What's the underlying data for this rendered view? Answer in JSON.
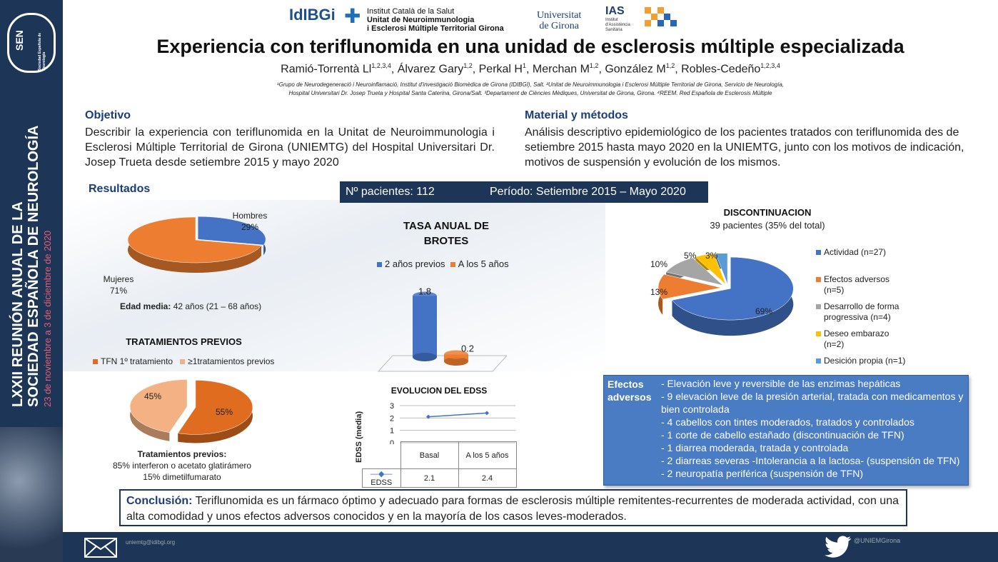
{
  "sidebar": {
    "logo_text": "SEN",
    "brand": "Sociedad Española de Neurología",
    "meeting_line1": "LXXII REUNIÓN ANUAL DE LA",
    "meeting_line2": "SOCIEDAD ESPAÑOLA DE NEUROLOGÍA",
    "dates": "23 de noviembre a 3 de diciembre de 2020"
  },
  "logos": {
    "idibgi": "IdIBGi",
    "ics_line1": "Institut Català de la Salut",
    "ics_line2": "Unitat de Neuroimmunologia",
    "ics_line3": "i Esclerosi Múltiple Territorial Girona",
    "udg_line1": "Universitat",
    "udg_line2": "de Girona",
    "ias": "IAS",
    "ias_sub": "Institut d'Assistència Sanitària"
  },
  "header": {
    "title": "Experiencia con teriflunomida en una unidad de esclerosis múltiple especializada",
    "authors": [
      {
        "name": "Ramió-Torrentà Ll",
        "sup": "1,2,3,4"
      },
      {
        "name": "Álvarez Gary",
        "sup": "1,2"
      },
      {
        "name": "Perkal H",
        "sup": "1"
      },
      {
        "name": "Merchan M",
        "sup": "1,2"
      },
      {
        "name": "González M",
        "sup": "1,2"
      },
      {
        "name": "Robles-Cedeño",
        "sup": "1,2,3,4"
      }
    ],
    "affil_line1": "¹Grupo de Neurodegeneració i Neuroinflamació, Institut d'investigació Biomèdica de Girona (IDIBGI), Salt. ²Unitat de Neuroimmunologia i Esclerosi Múltiple Territorial de Girona, Servicio de Neurología,",
    "affil_line2": "Hospital Universitari Dr. Josep Trueta y Hospital Santa Caterina, Girona/Salt. ³Departament de Ciències Mèdiques, Universitat de Girona, Girona. ⁴REEM. Red Española de Esclerosis Múltiple"
  },
  "objetivo": {
    "title": "Objetivo",
    "body": "Describir la experiencia con teriflunomida en la Unitat de Neuroimmunologia i Esclerosi Múltiple Territorial de Girona (UNIEMTG) del Hospital Universitari Dr. Josep Trueta desde setiembre 2015 y mayo 2020"
  },
  "metodos": {
    "title": "Material y métodos",
    "body": "Análisis descriptivo epidemiológico de los pacientes tratados con teriflunomida des de setiembre 2015 hasta mayo 2020 en la UNIEMTG, junto con los motivos de indicación, motivos de suspensión y evolución de los mismos."
  },
  "resultados": {
    "title": "Resultados",
    "patients": "Nº pacientes: 112",
    "period": "Período: Setiembre 2015 – Mayo 2020",
    "edad_label": "Edad media:",
    "edad_value": "42 años (21 – 68 años)"
  },
  "sex_pie": {
    "labels": [
      {
        "name": "Hombres",
        "pct": "29%"
      },
      {
        "name": "Mujeres",
        "pct": "71%"
      }
    ],
    "colors": [
      "#4472c4",
      "#ed7d31"
    ]
  },
  "tratamientos": {
    "title": "TRATAMIENTOS PREVIOS",
    "legend": [
      "TFN 1º tratamiento",
      "≥1tratamientos previos"
    ],
    "colors": [
      "#e06c1f",
      "#f4b183"
    ],
    "pcts": [
      "55%",
      "45%"
    ],
    "note_title": "Tratamientos previos:",
    "note_line1": "85% interferon o acetato glatirámero",
    "note_line2": "15% dimetilfumarato"
  },
  "chart_data": [
    {
      "type": "pie",
      "categories": [
        "Hombres",
        "Mujeres"
      ],
      "values": [
        29,
        71
      ]
    },
    {
      "type": "pie",
      "title": "TRATAMIENTOS PREVIOS",
      "categories": [
        "TFN 1º tratamiento",
        "≥1tratamientos previos"
      ],
      "values": [
        55,
        45
      ]
    },
    {
      "type": "bar",
      "title": "TASA ANUAL DE BROTES",
      "categories": [
        "2 años previos",
        "A los 5 años"
      ],
      "values": [
        1.8,
        0.2
      ],
      "legend": "top"
    },
    {
      "type": "line",
      "title": "EVOLUCION DEL EDSS",
      "categories": [
        "Basal",
        "A los 5 años"
      ],
      "series": [
        {
          "name": "EDSS",
          "values": [
            2.1,
            2.4
          ]
        }
      ],
      "ylabel": "EDSS (media)",
      "ylim": [
        0,
        3
      ],
      "yticks": [
        "0",
        "1",
        "2",
        "3"
      ],
      "grid": true
    },
    {
      "type": "pie",
      "title": "DISCONTINUACION",
      "subtitle": "39 pacientes (35% del total)",
      "categories": [
        "Actividad (n=27)",
        "Efectos adversos (n=5)",
        "Desarrollo de forma progressiva (n=4)",
        "Deseo embarazo (n=2)",
        "Desición propia (n=1)"
      ],
      "values": [
        69,
        13,
        10,
        5,
        3
      ],
      "legend": "right"
    }
  ],
  "tasa": {
    "title_line1": "TASA ANUAL DE",
    "title_line2": "BROTES",
    "legend": [
      "2 años previos",
      "A los 5 años"
    ],
    "colors": [
      "#4472c4",
      "#ed7d31"
    ],
    "labels": [
      "1.8",
      "0.2"
    ]
  },
  "edss": {
    "title": "EVOLUCION DEL EDSS",
    "ylabel": "EDSS (media)",
    "yticks": [
      "3",
      "2",
      "1",
      "0"
    ],
    "cols": [
      "Basal",
      "A los 5 años"
    ],
    "series_name": "EDSS",
    "values": [
      "2.1",
      "2.4"
    ],
    "color": "#4472c4"
  },
  "discontinuacion": {
    "title": "DISCONTINUACION",
    "subtitle": "39 pacientes (35% del total)",
    "legend": [
      {
        "line1": "Actividad (n=27)",
        "line2": ""
      },
      {
        "line1": "Efectos adversos",
        "line2": "(n=5)"
      },
      {
        "line1": "Desarrollo de forma",
        "line2": "progressiva (n=4)"
      },
      {
        "line1": "Deseo embarazo",
        "line2": "(n=2)"
      },
      {
        "line1": "Desición propia (n=1)",
        "line2": ""
      }
    ],
    "pcts": [
      "69%",
      "13%",
      "10%",
      "5%",
      "3%"
    ],
    "colors": [
      "#4472c4",
      "#ed7d31",
      "#a5a5a5",
      "#ffc000",
      "#5b9bd5"
    ]
  },
  "efectos": {
    "head_line1": "Efectos",
    "head_line2": "adversos",
    "items": [
      "- Elevación leve y reversible de las enzimas hepáticas",
      "- 9 elevación leve de la presión arterial, tratada con medicamentos y bien controlada",
      "- 4 cabellos con tintes moderados, tratados y controlados",
      "- 1 corte de cabello estañado (discontinuación de TFN)",
      "- 1 diarrea moderada, tratada y controlada",
      "- 2 diarreas severas -Intolerancia a la lactosa- (suspensión de TFN)",
      "- 2 neuropatía periférica (suspensión de TFN)"
    ]
  },
  "conclusion": {
    "label": "Conclusión:",
    "text": " Teriflunomida es un fármaco óptimo y adecuado para formas de esclerosis múltiple remitentes-recurrentes de moderada actividad, con una alta comodidad y unos efectos adversos conocidos y en la mayoría de los casos leves-moderados."
  },
  "footer": {
    "email": "uniemtg@idibgi.org",
    "twitter": "@UNIEMGirona",
    "icons": [
      "mail-icon",
      "twitter-icon"
    ]
  }
}
